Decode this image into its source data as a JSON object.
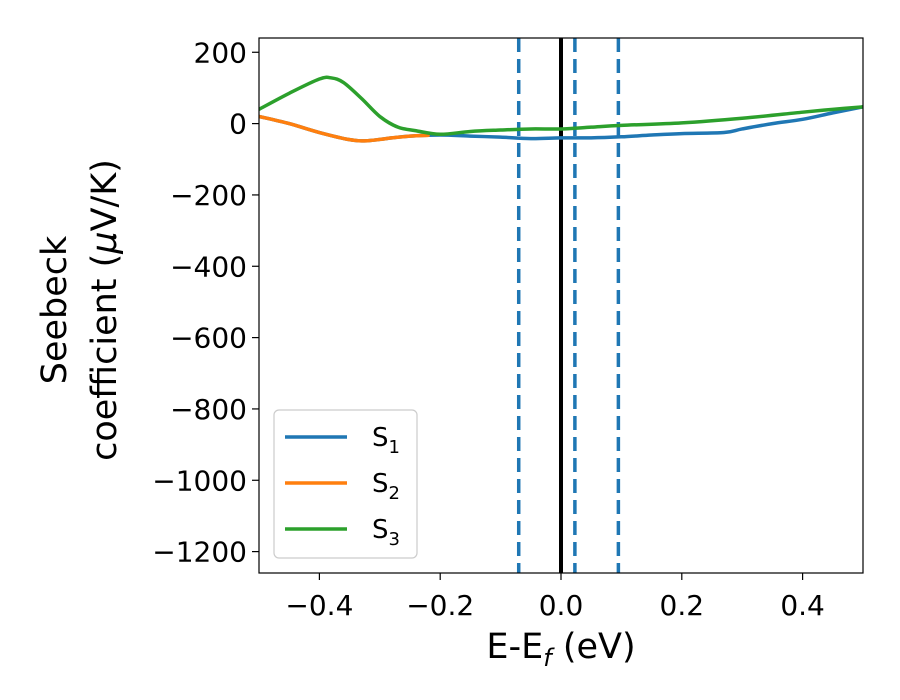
{
  "chart_data": {
    "type": "line",
    "xlabel": {
      "prefix": "E-E",
      "sub": "f",
      "suffix": " (eV)"
    },
    "ylabel": {
      "line1": "Seebeck",
      "line2": "coefficient  (",
      "mu": "μ",
      "line2_end": "V/K)"
    },
    "xlim": [
      -0.5,
      0.5
    ],
    "ylim": [
      -1260,
      240
    ],
    "xticks": [
      -0.4,
      -0.2,
      0.0,
      0.2,
      0.4
    ],
    "xtick_labels": [
      "−0.4",
      "−0.2",
      "0.0",
      "0.2",
      "0.4"
    ],
    "yticks": [
      200,
      0,
      -200,
      -400,
      -600,
      -800,
      -1000,
      -1200
    ],
    "ytick_labels": [
      "200",
      "0",
      "−200",
      "−400",
      "−600",
      "−800",
      "−1000",
      "−1200"
    ],
    "grid": false,
    "legend_position": "lower-left",
    "series": [
      {
        "name": "S",
        "sub": "1",
        "color": "#1f77b4",
        "x": [
          -0.5,
          -0.45,
          -0.4,
          -0.35,
          -0.32,
          -0.28,
          -0.25,
          -0.2,
          -0.15,
          -0.1,
          -0.05,
          0.0,
          0.05,
          0.1,
          0.15,
          0.2,
          0.27,
          0.3,
          0.35,
          0.4,
          0.45,
          0.5
        ],
        "y": [
          20,
          0,
          -25,
          -45,
          -48,
          -40,
          -35,
          -32,
          -35,
          -38,
          -42,
          -40,
          -40,
          -37,
          -32,
          -28,
          -25,
          -15,
          0,
          12,
          30,
          47
        ]
      },
      {
        "name": "S",
        "sub": "2",
        "color": "#ff7f0e",
        "x": [
          -0.5,
          -0.45,
          -0.4,
          -0.35,
          -0.32,
          -0.28,
          -0.25,
          -0.22
        ],
        "y": [
          20,
          0,
          -25,
          -45,
          -48,
          -40,
          -35,
          -33
        ]
      },
      {
        "name": "S",
        "sub": "3",
        "color": "#2ca02c",
        "x": [
          -0.5,
          -0.45,
          -0.4,
          -0.38,
          -0.36,
          -0.33,
          -0.3,
          -0.27,
          -0.24,
          -0.2,
          -0.15,
          -0.1,
          -0.05,
          0.0,
          0.05,
          0.1,
          0.2,
          0.3,
          0.4,
          0.45,
          0.5
        ],
        "y": [
          40,
          85,
          125,
          128,
          115,
          70,
          20,
          -10,
          -20,
          -30,
          -22,
          -18,
          -15,
          -15,
          -10,
          -5,
          2,
          15,
          32,
          40,
          47
        ]
      }
    ],
    "vlines": [
      {
        "x": -0.07,
        "style": "dashed",
        "color": "#1f77b4"
      },
      {
        "x": 0.0,
        "style": "solid",
        "color": "#000000"
      },
      {
        "x": 0.023,
        "style": "dashed",
        "color": "#1f77b4"
      },
      {
        "x": 0.095,
        "style": "dashed",
        "color": "#1f77b4"
      }
    ]
  }
}
